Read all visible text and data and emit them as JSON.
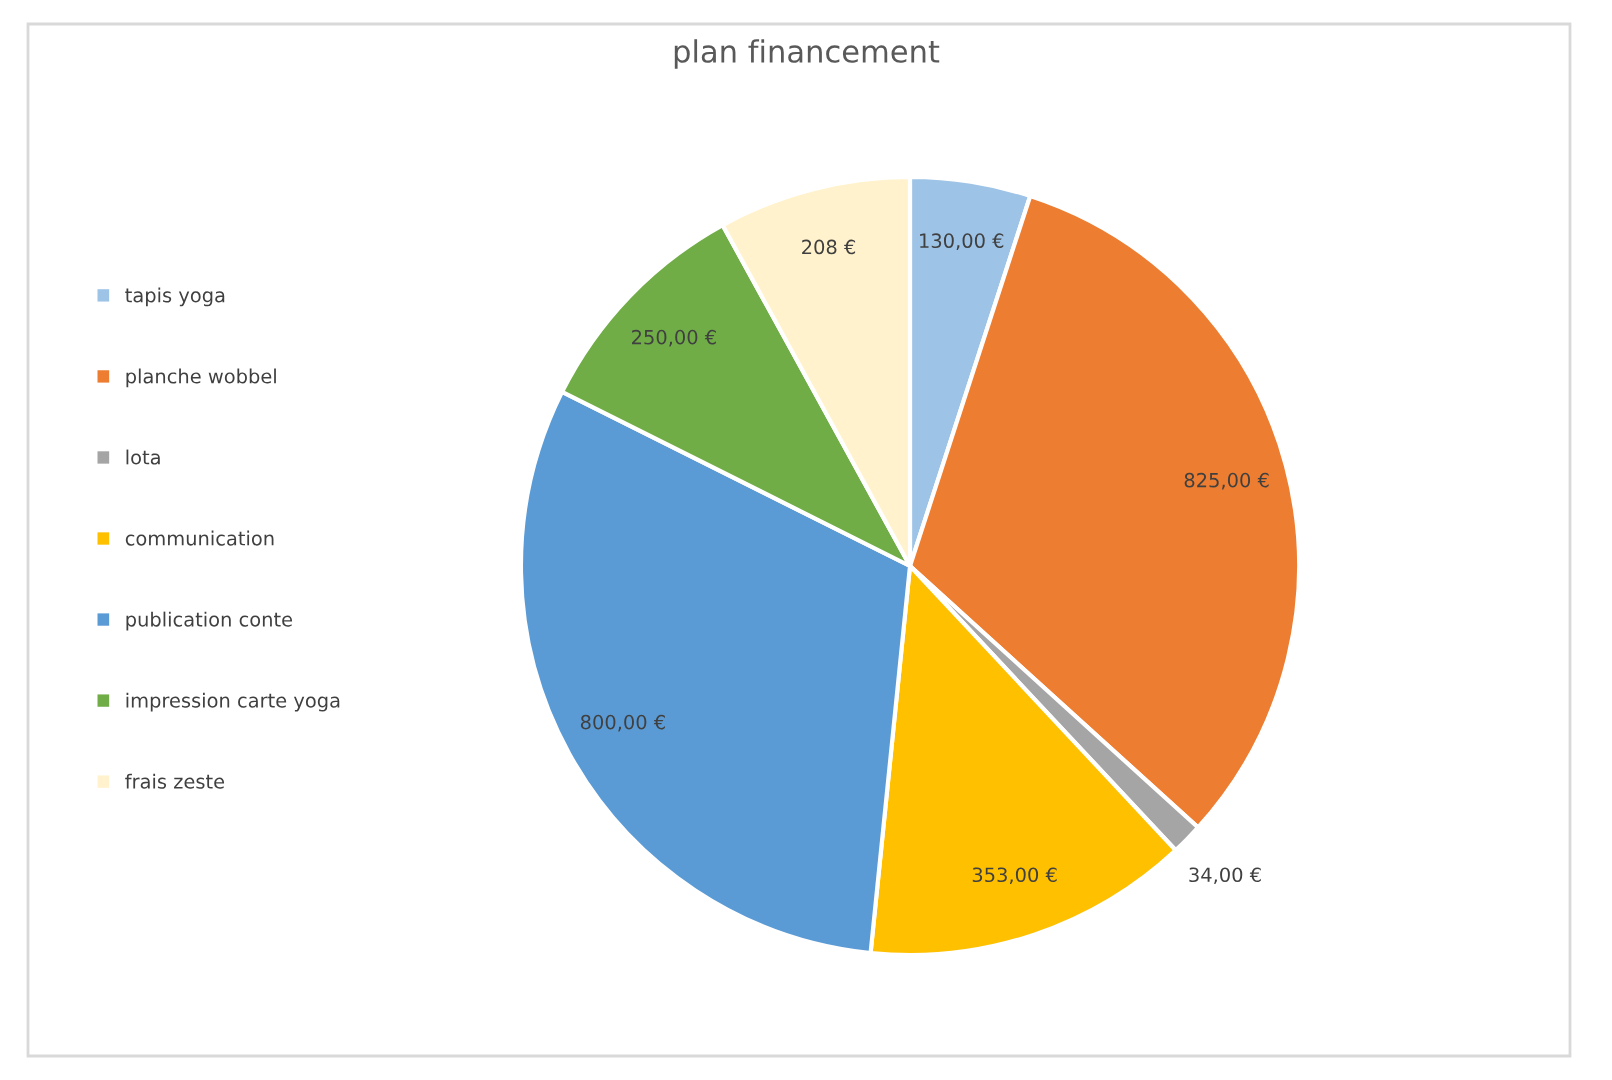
{
  "chart_data": {
    "type": "pie",
    "title": "plan financement",
    "categories": [
      "tapis yoga",
      "planche wobbel",
      "lota",
      "communication",
      "publication conte",
      "impression carte yoga",
      "frais zeste"
    ],
    "values": [
      130,
      825,
      34,
      353,
      800,
      250,
      208
    ],
    "value_labels": [
      "130,00 €",
      "825,00 €",
      "34,00 €",
      "353,00 €",
      "800,00 €",
      "250,00 €",
      "208 €"
    ],
    "colors": [
      "#9dc3e6",
      "#ed7d31",
      "#a5a5a5",
      "#ffc000",
      "#5b9bd5",
      "#70ad47",
      "#fff2cc"
    ],
    "legend": "left"
  }
}
